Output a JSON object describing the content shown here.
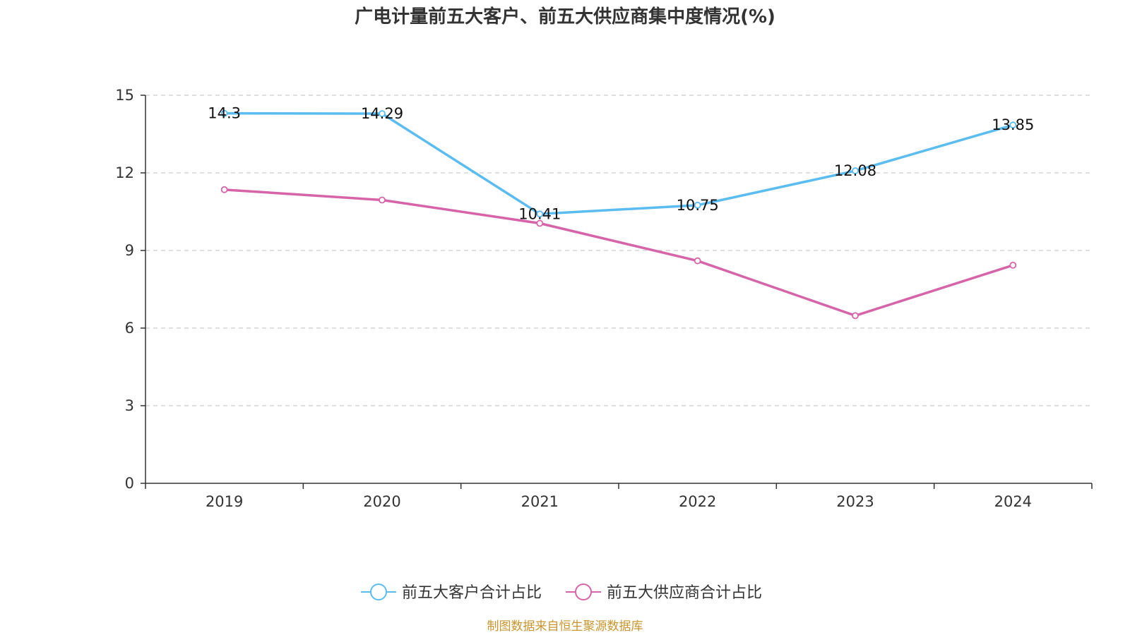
{
  "chart_data": {
    "type": "line",
    "title": "广电计量前五大客户、前五大供应商集中度情况(%)",
    "categories": [
      "2019",
      "2020",
      "2021",
      "2022",
      "2023",
      "2024"
    ],
    "series": [
      {
        "name": "前五大客户合计占比",
        "color": "#5bbcf0",
        "values": [
          14.3,
          14.29,
          10.41,
          10.75,
          12.08,
          13.85
        ],
        "show_labels": true
      },
      {
        "name": "前五大供应商合计占比",
        "color": "#d664a8",
        "values": [
          11.35,
          10.95,
          10.05,
          8.6,
          6.48,
          8.43
        ],
        "show_labels": false
      }
    ],
    "ylim": [
      0,
      15
    ],
    "yticks": [
      0,
      3,
      6,
      9,
      12,
      15
    ],
    "xlabel": "",
    "ylabel": "",
    "grid": true,
    "legend_position": "bottom"
  },
  "source": {
    "text": "制图数据来自恒生聚源数据库",
    "color": "#c8952e"
  }
}
